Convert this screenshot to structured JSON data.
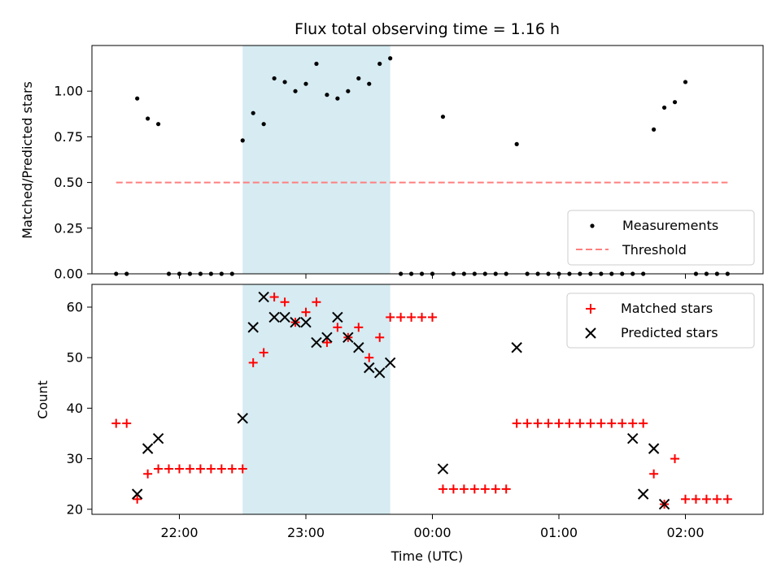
{
  "chart_data": [
    {
      "type": "scatter",
      "title": "Flux total observing time = 1.16 h",
      "ylabel": "Matched/Predicted stars",
      "ylim": [
        0,
        1.25
      ],
      "yticks": [
        "0.00",
        "0.25",
        "0.50",
        "0.75",
        "1.00"
      ],
      "shaded_span_x": [
        "22:30",
        "23:40"
      ],
      "shade_color": "#add8e6",
      "legend_position": "lower right",
      "series": [
        {
          "name": "Measurements",
          "marker": "dot",
          "color": "#000000",
          "x": [
            "21:30",
            "21:35",
            "21:40",
            "21:45",
            "21:50",
            "21:55",
            "22:00",
            "22:05",
            "22:10",
            "22:15",
            "22:20",
            "22:25",
            "22:30",
            "22:35",
            "22:40",
            "22:45",
            "22:50",
            "22:55",
            "23:00",
            "23:05",
            "23:10",
            "23:15",
            "23:20",
            "23:25",
            "23:30",
            "23:35",
            "23:40",
            "23:45",
            "23:50",
            "23:55",
            "00:00",
            "00:05",
            "00:10",
            "00:15",
            "00:20",
            "00:25",
            "00:30",
            "00:35",
            "00:40",
            "00:45",
            "00:50",
            "00:55",
            "01:00",
            "01:05",
            "01:10",
            "01:15",
            "01:20",
            "01:25",
            "01:30",
            "01:35",
            "01:40",
            "01:45",
            "01:50",
            "01:55",
            "02:00",
            "02:05",
            "02:10",
            "02:15",
            "02:20"
          ],
          "y": [
            0,
            0,
            0.96,
            0.85,
            0.82,
            0,
            0,
            0,
            0,
            0,
            0,
            0,
            0.73,
            0.88,
            0.82,
            1.07,
            1.05,
            1.0,
            1.04,
            1.15,
            0.98,
            0.96,
            1.0,
            1.07,
            1.04,
            1.15,
            1.18,
            0,
            0,
            0,
            0,
            0.86,
            0,
            0,
            0,
            0,
            0,
            0,
            0.71,
            0,
            0,
            0,
            0,
            0,
            0,
            0,
            0,
            0,
            0,
            0,
            0,
            0.79,
            0.91,
            0.94,
            1.05,
            0,
            0,
            0,
            0
          ]
        },
        {
          "name": "Threshold",
          "marker": "dashed-line",
          "color": "#ff7f7f",
          "x": [
            "21:30",
            "02:20"
          ],
          "y": [
            0.5,
            0.5
          ]
        }
      ]
    },
    {
      "type": "scatter",
      "xlabel": "Time (UTC)",
      "ylabel": "Count",
      "ylim": [
        19,
        64.5
      ],
      "yticks": [
        "20",
        "30",
        "40",
        "50",
        "60"
      ],
      "xticks": [
        "22:00",
        "23:00",
        "00:00",
        "01:00",
        "02:00"
      ],
      "shaded_span_x": [
        "22:30",
        "23:40"
      ],
      "shade_color": "#add8e6",
      "legend_position": "upper right",
      "series": [
        {
          "name": "Matched stars",
          "marker": "plus",
          "color": "#ff0000",
          "x": [
            "21:30",
            "21:35",
            "21:40",
            "21:45",
            "21:50",
            "21:55",
            "22:00",
            "22:05",
            "22:10",
            "22:15",
            "22:20",
            "22:25",
            "22:30",
            "22:35",
            "22:40",
            "22:45",
            "22:50",
            "22:55",
            "23:00",
            "23:05",
            "23:10",
            "23:15",
            "23:20",
            "23:25",
            "23:30",
            "23:35",
            "23:40",
            "23:45",
            "23:50",
            "23:55",
            "00:00",
            "00:05",
            "00:10",
            "00:15",
            "00:20",
            "00:25",
            "00:30",
            "00:35",
            "00:40",
            "00:45",
            "00:50",
            "00:55",
            "01:00",
            "01:05",
            "01:10",
            "01:15",
            "01:20",
            "01:25",
            "01:30",
            "01:35",
            "01:40",
            "01:45",
            "01:50",
            "01:55",
            "02:00",
            "02:05",
            "02:10",
            "02:15",
            "02:20"
          ],
          "y": [
            37,
            37,
            22,
            27,
            28,
            28,
            28,
            28,
            28,
            28,
            28,
            28,
            28,
            49,
            51,
            62,
            61,
            57,
            59,
            61,
            53,
            56,
            54,
            56,
            50,
            54,
            58,
            58,
            58,
            58,
            58,
            24,
            24,
            24,
            24,
            24,
            24,
            24,
            37,
            37,
            37,
            37,
            37,
            37,
            37,
            37,
            37,
            37,
            37,
            37,
            37,
            27,
            21,
            30,
            22,
            22,
            22,
            22,
            22
          ]
        },
        {
          "name": "Predicted stars",
          "marker": "x",
          "color": "#000000",
          "x": [
            "21:40",
            "21:45",
            "21:50",
            "22:30",
            "22:35",
            "22:40",
            "22:45",
            "22:50",
            "22:55",
            "23:00",
            "23:05",
            "23:10",
            "23:15",
            "23:20",
            "23:25",
            "23:30",
            "23:35",
            "23:40",
            "00:05",
            "00:40",
            "01:35",
            "01:40",
            "01:45",
            "01:50"
          ],
          "y": [
            23,
            32,
            34,
            38,
            56,
            62,
            58,
            58,
            57,
            57,
            53,
            54,
            58,
            54,
            52,
            48,
            47,
            49,
            28,
            52,
            34,
            23,
            32,
            21
          ]
        }
      ]
    }
  ]
}
